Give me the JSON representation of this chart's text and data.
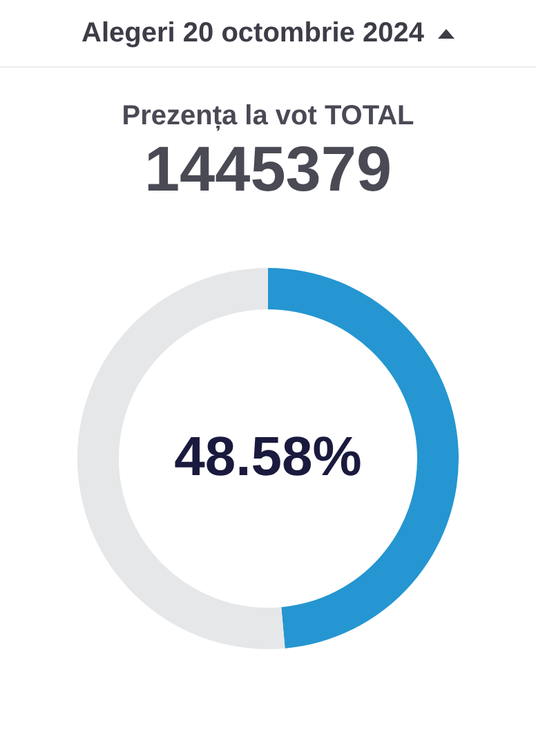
{
  "chart_data": {
    "type": "donut",
    "title": "Alegeri 20 octombrie 2024",
    "subtitle": "Prezența la vot TOTAL",
    "annotations": [
      "1445379"
    ],
    "categories": [
      null,
      null
    ],
    "values": [
      48.58,
      51.42
    ],
    "colors": [
      "#2596d1",
      "#e6e7e9"
    ],
    "value_labels": [
      "48.58%",
      null
    ]
  }
}
